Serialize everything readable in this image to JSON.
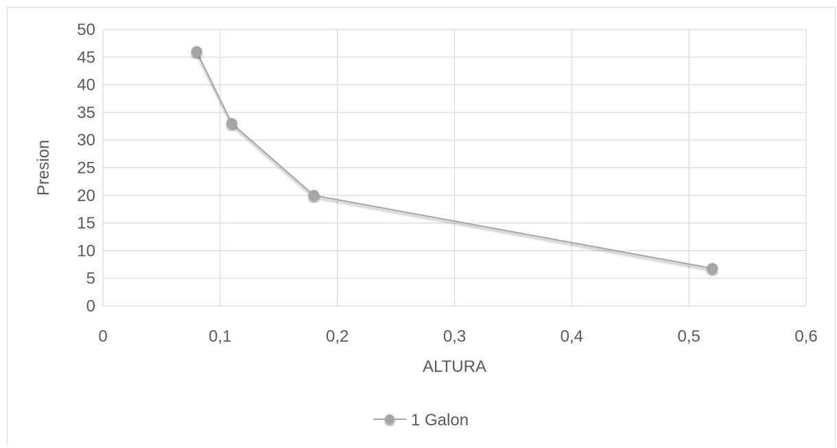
{
  "chart_data": {
    "type": "scatter",
    "title": "",
    "xlabel": "ALTURA",
    "ylabel": "Presion",
    "xlim": [
      0,
      0.6
    ],
    "ylim": [
      0,
      50
    ],
    "x_ticks": [
      0,
      0.1,
      0.2,
      0.3,
      0.4,
      0.5,
      0.6
    ],
    "y_ticks": [
      0,
      5,
      10,
      15,
      20,
      25,
      30,
      35,
      40,
      45,
      50
    ],
    "x_tick_labels": [
      "0",
      "0,1",
      "0,2",
      "0,3",
      "0,4",
      "0,5",
      "0,6"
    ],
    "y_tick_labels": [
      "0",
      "5",
      "10",
      "15",
      "20",
      "25",
      "30",
      "35",
      "40",
      "45",
      "50"
    ],
    "grid": true,
    "legend_position": "bottom",
    "series": [
      {
        "name": "1 Galon",
        "x": [
          0.08,
          0.11,
          0.18,
          0.52
        ],
        "y": [
          46,
          33,
          20,
          6.8
        ],
        "color": "#a5a5a5",
        "line": "straight",
        "marker": "circle"
      }
    ]
  }
}
